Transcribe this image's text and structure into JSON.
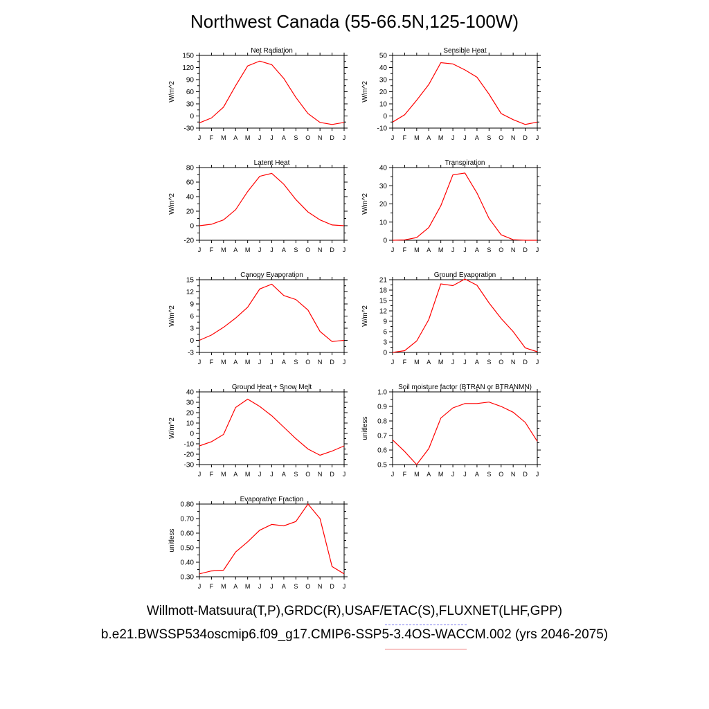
{
  "page": {
    "title": "Northwest Canada (55-66.5N,125-100W)",
    "caption_line1": "Willmott-Matsuura(T,P),GRDC(R),USAF/ETAC(S),FLUXNET(LHF,GPP)",
    "caption_line2": "b.e21.BWSSP534oscmip6.f09_g17.CMIP6-SSP5-3.4OS-WACCM.002 (yrs 2046-2075)"
  },
  "colors": {
    "series": "#ff0000",
    "axis": "#000000",
    "dash_accent": "#7777ee",
    "line_accent": "#ee7777"
  },
  "chart_data": [
    {
      "type": "line",
      "title": "Net Radiation",
      "ylabel": "W/m^2",
      "x": [
        "J",
        "F",
        "M",
        "A",
        "M",
        "J",
        "J",
        "A",
        "S",
        "O",
        "N",
        "D",
        "J"
      ],
      "ylim": [
        -30,
        150
      ],
      "yticks": [
        -30,
        0,
        30,
        60,
        90,
        120,
        150
      ],
      "yticklabels": [
        "-30",
        "0",
        "30",
        "60",
        "90",
        "120",
        "150"
      ],
      "series": [
        {
          "values": [
            -17,
            -5,
            22,
            75,
            124,
            136,
            127,
            93,
            46,
            6,
            -16,
            -21,
            -16
          ]
        }
      ]
    },
    {
      "type": "line",
      "title": "Sensible Heat",
      "ylabel": "W/m^2",
      "x": [
        "J",
        "F",
        "M",
        "A",
        "M",
        "J",
        "J",
        "A",
        "S",
        "O",
        "N",
        "D",
        "J"
      ],
      "ylim": [
        -10,
        50
      ],
      "yticks": [
        -10,
        0,
        10,
        20,
        30,
        40,
        50
      ],
      "yticklabels": [
        "-10",
        "0",
        "10",
        "20",
        "30",
        "40",
        "50"
      ],
      "series": [
        {
          "values": [
            -5,
            1,
            13,
            26,
            44,
            43,
            38,
            32,
            18,
            2,
            -3,
            -7,
            -5
          ]
        }
      ]
    },
    {
      "type": "line",
      "title": "Latent Heat",
      "ylabel": "W/m^2",
      "x": [
        "J",
        "F",
        "M",
        "A",
        "M",
        "J",
        "J",
        "A",
        "S",
        "O",
        "N",
        "D",
        "J"
      ],
      "ylim": [
        -20,
        80
      ],
      "yticks": [
        -20,
        0,
        20,
        40,
        60,
        80
      ],
      "yticklabels": [
        "-20",
        "0",
        "20",
        "40",
        "60",
        "80"
      ],
      "series": [
        {
          "values": [
            0,
            2,
            8,
            22,
            47,
            68,
            72,
            57,
            36,
            19,
            8,
            1,
            0
          ]
        }
      ]
    },
    {
      "type": "line",
      "title": "Transpiration",
      "ylabel": "W/m^2",
      "x": [
        "J",
        "F",
        "M",
        "A",
        "M",
        "J",
        "J",
        "A",
        "S",
        "O",
        "N",
        "D",
        "J"
      ],
      "ylim": [
        0,
        40
      ],
      "yticks": [
        0,
        10,
        20,
        30,
        40
      ],
      "yticklabels": [
        "0",
        "10",
        "20",
        "30",
        "40"
      ],
      "series": [
        {
          "values": [
            0,
            0.2,
            1.5,
            7,
            19,
            36,
            37,
            26,
            12,
            3,
            0.3,
            0,
            0
          ]
        }
      ]
    },
    {
      "type": "line",
      "title": "Canopy Evaporation",
      "ylabel": "W/m^2",
      "x": [
        "J",
        "F",
        "M",
        "A",
        "M",
        "J",
        "J",
        "A",
        "S",
        "O",
        "N",
        "D",
        "J"
      ],
      "ylim": [
        -3,
        15
      ],
      "yticks": [
        -3,
        0,
        3,
        6,
        9,
        12,
        15
      ],
      "yticklabels": [
        "-3",
        "0",
        "3",
        "6",
        "9",
        "12",
        "15"
      ],
      "series": [
        {
          "values": [
            0,
            1.3,
            3.2,
            5.5,
            8.2,
            12.7,
            13.9,
            11.1,
            10.1,
            7.5,
            2.2,
            -0.3,
            0
          ]
        }
      ]
    },
    {
      "type": "line",
      "title": "Ground Evaporation",
      "ylabel": "W/m^2",
      "x": [
        "J",
        "F",
        "M",
        "A",
        "M",
        "J",
        "J",
        "A",
        "S",
        "O",
        "N",
        "D",
        "J"
      ],
      "ylim": [
        0,
        21
      ],
      "yticks": [
        0,
        3,
        6,
        9,
        12,
        15,
        18,
        21
      ],
      "yticklabels": [
        "0",
        "3",
        "6",
        "9",
        "12",
        "15",
        "18",
        "21"
      ],
      "series": [
        {
          "values": [
            0,
            0.5,
            3.3,
            9.5,
            19.8,
            19.3,
            21.2,
            19.4,
            14.3,
            9.8,
            6.0,
            1.3,
            0.2
          ]
        }
      ]
    },
    {
      "type": "line",
      "title": "Ground Heat + Snow Melt",
      "ylabel": "W/m^2",
      "x": [
        "J",
        "F",
        "M",
        "A",
        "M",
        "J",
        "J",
        "A",
        "S",
        "O",
        "N",
        "D",
        "J"
      ],
      "ylim": [
        -30,
        40
      ],
      "yticks": [
        -30,
        -20,
        -10,
        0,
        10,
        20,
        30,
        40
      ],
      "yticklabels": [
        "-30",
        "-20",
        "-10",
        "0",
        "10",
        "20",
        "30",
        "40"
      ],
      "series": [
        {
          "values": [
            -12,
            -8,
            -1,
            25,
            33,
            26,
            17,
            6,
            -5,
            -15,
            -21,
            -17,
            -12
          ]
        }
      ]
    },
    {
      "type": "line",
      "title": "Soil moisture factor (BTRAN or BTRANMN)",
      "ylabel": "unitless",
      "x": [
        "J",
        "F",
        "M",
        "A",
        "M",
        "J",
        "J",
        "A",
        "S",
        "O",
        "N",
        "D",
        "J"
      ],
      "ylim": [
        0.5,
        1.0
      ],
      "yticks": [
        0.5,
        0.6,
        0.7,
        0.8,
        0.9,
        1.0
      ],
      "yticklabels": [
        "0.5",
        "0.6",
        "0.7",
        "0.8",
        "0.9",
        "1.0"
      ],
      "series": [
        {
          "values": [
            0.67,
            0.59,
            0.5,
            0.61,
            0.82,
            0.89,
            0.92,
            0.92,
            0.93,
            0.9,
            0.86,
            0.79,
            0.66
          ]
        }
      ]
    },
    {
      "type": "line",
      "title": "Evaporative Fraction",
      "ylabel": "unitless",
      "x": [
        "J",
        "F",
        "M",
        "A",
        "M",
        "J",
        "J",
        "A",
        "S",
        "O",
        "N",
        "D",
        "J"
      ],
      "ylim": [
        0.3,
        0.8
      ],
      "yticks": [
        0.3,
        0.4,
        0.5,
        0.6,
        0.7,
        0.8
      ],
      "yticklabels": [
        "0.30",
        "0.40",
        "0.50",
        "0.60",
        "0.70",
        "0.80"
      ],
      "series": [
        {
          "values": [
            0.32,
            0.34,
            0.345,
            0.47,
            0.54,
            0.62,
            0.66,
            0.65,
            0.68,
            0.8,
            0.7,
            0.37,
            0.32
          ]
        }
      ]
    }
  ]
}
